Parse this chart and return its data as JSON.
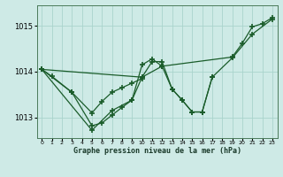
{
  "title": "Graphe pression niveau de la mer (hPa)",
  "background_color": "#ceeae6",
  "grid_color": "#aad4cc",
  "line_color": "#1a5c2a",
  "yticks": [
    1013,
    1014,
    1015
  ],
  "ylim": [
    1012.55,
    1015.45
  ],
  "xlim": [
    -0.5,
    23.5
  ],
  "series_data": {
    "line1": {
      "x": [
        0,
        1,
        3,
        5,
        6,
        7,
        8,
        9,
        10
      ],
      "y": [
        1014.05,
        1013.9,
        1013.55,
        1013.1,
        1013.35,
        1013.55,
        1013.65,
        1013.75,
        1013.85
      ]
    },
    "line2": {
      "x": [
        0,
        5,
        7,
        9,
        10,
        11,
        12,
        13,
        14,
        15,
        16,
        17,
        19,
        21,
        23
      ],
      "y": [
        1014.05,
        1012.72,
        1013.15,
        1013.38,
        1014.15,
        1014.28,
        1014.12,
        1013.62,
        1013.38,
        1013.12,
        1013.12,
        1013.88,
        1014.3,
        1014.82,
        1015.15
      ]
    },
    "line3": {
      "x": [
        0,
        3,
        5,
        6,
        7,
        8,
        9,
        10,
        11,
        12,
        13,
        14,
        15,
        16,
        17
      ],
      "y": [
        1014.05,
        1013.55,
        1012.82,
        1012.88,
        1013.05,
        1013.22,
        1013.38,
        1013.88,
        1014.22,
        1014.22,
        1013.62,
        1013.38,
        1013.12,
        1013.12,
        1013.88
      ]
    },
    "line4": {
      "x": [
        0,
        10,
        12,
        19,
        20,
        21,
        22,
        23
      ],
      "y": [
        1014.05,
        1013.88,
        1014.12,
        1014.32,
        1014.62,
        1014.98,
        1015.05,
        1015.18
      ]
    }
  }
}
